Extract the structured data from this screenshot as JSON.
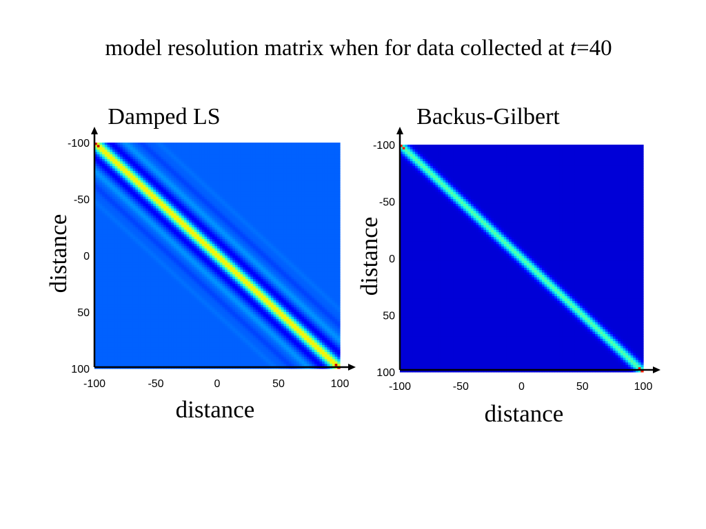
{
  "page": {
    "title_text": "model resolution matrix when for data collected at ",
    "title_var": "t",
    "title_rest": "=40"
  },
  "colormap": [
    "#00008f",
    "#0000ff",
    "#007fff",
    "#00ffff",
    "#7fff7f",
    "#ffff00",
    "#ff7f00",
    "#ff0000",
    "#7f0000"
  ],
  "chart_data": [
    {
      "type": "heatmap",
      "title": "Damped LS",
      "xlabel": "distance",
      "ylabel": "distance",
      "xlim": [
        -100,
        100
      ],
      "ylim": [
        -100,
        100
      ],
      "y_inverted": true,
      "xticks": [
        -100,
        -50,
        0,
        50,
        100
      ],
      "yticks": [
        -100,
        -50,
        0,
        50,
        100
      ],
      "xtick_labels": [
        "-100",
        "-50",
        "0",
        "50",
        "100"
      ],
      "ytick_labels": [
        "-100",
        "-50",
        "0",
        "50",
        "100"
      ],
      "diagonal": {
        "background_level": 0.22,
        "peak_level": 0.64,
        "end_peak_level": 0.92,
        "main_width": 4.0,
        "sidelobes": [
          {
            "offset": 13,
            "level": -0.1,
            "width": 3.5
          },
          {
            "offset": 25,
            "level": 0.05,
            "width": 3.0
          },
          {
            "offset": 38,
            "level": -0.03,
            "width": 2.6
          },
          {
            "offset": 52,
            "level": 0.015,
            "width": 2.2
          }
        ]
      }
    },
    {
      "type": "heatmap",
      "title": "Backus-Gilbert",
      "xlabel": "distance",
      "ylabel": "distance",
      "xlim": [
        -100,
        100
      ],
      "ylim": [
        -100,
        100
      ],
      "y_inverted": true,
      "xticks": [
        -100,
        -50,
        0,
        50,
        100
      ],
      "yticks": [
        -100,
        -50,
        0,
        50,
        100
      ],
      "xtick_labels": [
        "-100",
        "-50",
        "0",
        "50",
        "100"
      ],
      "ytick_labels": [
        "-100",
        "-50",
        "0",
        "50",
        "100"
      ],
      "diagonal": {
        "background_level": 0.08,
        "peak_level": 0.46,
        "end_peak_level": 0.85,
        "main_width": 4.0,
        "sidelobes": []
      }
    }
  ]
}
